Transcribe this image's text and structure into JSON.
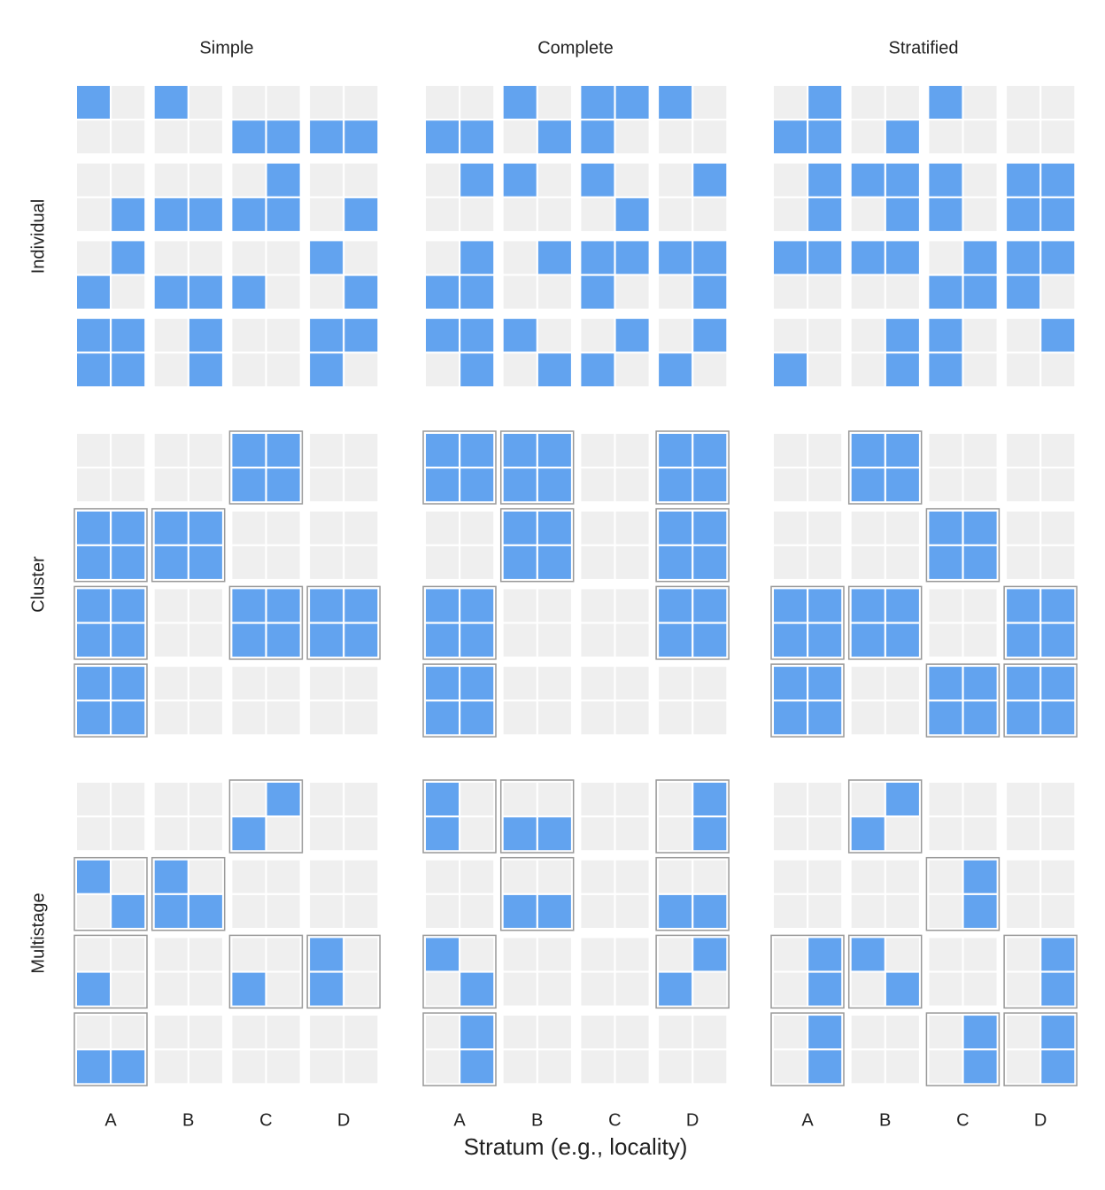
{
  "columns": [
    "Simple",
    "Complete",
    "Stratified"
  ],
  "strata": [
    "A",
    "B",
    "C",
    "D"
  ],
  "x_title": "Stratum (e.g., locality)",
  "colors": {
    "selected": "#62a3ef",
    "unselected": "#efefef",
    "box": "#999999"
  },
  "rows": [
    {
      "label": "Individual",
      "panels": [
        {
          "cells": [
            [
              1,
              0,
              1,
              0,
              0,
              0,
              0,
              0
            ],
            [
              0,
              0,
              0,
              0,
              1,
              1,
              1,
              1
            ],
            [
              0,
              0,
              0,
              0,
              0,
              1,
              0,
              0
            ],
            [
              0,
              1,
              1,
              1,
              1,
              1,
              0,
              1
            ],
            [
              0,
              1,
              0,
              0,
              0,
              0,
              1,
              0
            ],
            [
              1,
              0,
              1,
              1,
              1,
              0,
              0,
              1
            ],
            [
              1,
              1,
              0,
              1,
              0,
              0,
              1,
              1
            ],
            [
              1,
              1,
              0,
              1,
              0,
              0,
              1,
              0
            ]
          ],
          "boxes": [
            [
              0,
              0,
              0,
              0
            ],
            [
              0,
              0,
              0,
              0
            ],
            [
              0,
              0,
              0,
              0
            ],
            [
              0,
              0,
              0,
              0
            ]
          ]
        },
        {
          "cells": [
            [
              0,
              0,
              1,
              0,
              1,
              1,
              1,
              0
            ],
            [
              1,
              1,
              0,
              1,
              1,
              0,
              0,
              0
            ],
            [
              0,
              1,
              1,
              0,
              1,
              0,
              0,
              1
            ],
            [
              0,
              0,
              0,
              0,
              0,
              1,
              0,
              0
            ],
            [
              0,
              1,
              0,
              1,
              1,
              1,
              1,
              1
            ],
            [
              1,
              1,
              0,
              0,
              1,
              0,
              0,
              1
            ],
            [
              1,
              1,
              1,
              0,
              0,
              1,
              0,
              1
            ],
            [
              0,
              1,
              0,
              1,
              1,
              0,
              1,
              0
            ]
          ],
          "boxes": [
            [
              0,
              0,
              0,
              0
            ],
            [
              0,
              0,
              0,
              0
            ],
            [
              0,
              0,
              0,
              0
            ],
            [
              0,
              0,
              0,
              0
            ]
          ]
        },
        {
          "cells": [
            [
              0,
              1,
              0,
              0,
              1,
              0,
              0,
              0
            ],
            [
              1,
              1,
              0,
              1,
              0,
              0,
              0,
              0
            ],
            [
              0,
              1,
              1,
              1,
              1,
              0,
              1,
              1
            ],
            [
              0,
              1,
              0,
              1,
              1,
              0,
              1,
              1
            ],
            [
              1,
              1,
              1,
              1,
              0,
              1,
              1,
              1
            ],
            [
              0,
              0,
              0,
              0,
              1,
              1,
              1,
              0
            ],
            [
              0,
              0,
              0,
              1,
              1,
              0,
              0,
              1
            ],
            [
              1,
              0,
              0,
              1,
              1,
              0,
              0,
              0
            ]
          ],
          "boxes": [
            [
              0,
              0,
              0,
              0
            ],
            [
              0,
              0,
              0,
              0
            ],
            [
              0,
              0,
              0,
              0
            ],
            [
              0,
              0,
              0,
              0
            ]
          ]
        }
      ]
    },
    {
      "label": "Cluster",
      "panels": [
        {
          "cells": [
            [
              0,
              0,
              0,
              0,
              1,
              1,
              0,
              0
            ],
            [
              0,
              0,
              0,
              0,
              1,
              1,
              0,
              0
            ],
            [
              1,
              1,
              1,
              1,
              0,
              0,
              0,
              0
            ],
            [
              1,
              1,
              1,
              1,
              0,
              0,
              0,
              0
            ],
            [
              1,
              1,
              0,
              0,
              1,
              1,
              1,
              1
            ],
            [
              1,
              1,
              0,
              0,
              1,
              1,
              1,
              1
            ],
            [
              1,
              1,
              0,
              0,
              0,
              0,
              0,
              0
            ],
            [
              1,
              1,
              0,
              0,
              0,
              0,
              0,
              0
            ]
          ],
          "boxes": [
            [
              0,
              0,
              1,
              0
            ],
            [
              1,
              1,
              0,
              0
            ],
            [
              1,
              0,
              1,
              1
            ],
            [
              1,
              0,
              0,
              0
            ]
          ]
        },
        {
          "cells": [
            [
              1,
              1,
              1,
              1,
              0,
              0,
              1,
              1
            ],
            [
              1,
              1,
              1,
              1,
              0,
              0,
              1,
              1
            ],
            [
              0,
              0,
              1,
              1,
              0,
              0,
              1,
              1
            ],
            [
              0,
              0,
              1,
              1,
              0,
              0,
              1,
              1
            ],
            [
              1,
              1,
              0,
              0,
              0,
              0,
              1,
              1
            ],
            [
              1,
              1,
              0,
              0,
              0,
              0,
              1,
              1
            ],
            [
              1,
              1,
              0,
              0,
              0,
              0,
              0,
              0
            ],
            [
              1,
              1,
              0,
              0,
              0,
              0,
              0,
              0
            ]
          ],
          "boxes": [
            [
              1,
              1,
              0,
              1
            ],
            [
              0,
              1,
              0,
              1
            ],
            [
              1,
              0,
              0,
              1
            ],
            [
              1,
              0,
              0,
              0
            ]
          ]
        },
        {
          "cells": [
            [
              0,
              0,
              1,
              1,
              0,
              0,
              0,
              0
            ],
            [
              0,
              0,
              1,
              1,
              0,
              0,
              0,
              0
            ],
            [
              0,
              0,
              0,
              0,
              1,
              1,
              0,
              0
            ],
            [
              0,
              0,
              0,
              0,
              1,
              1,
              0,
              0
            ],
            [
              1,
              1,
              1,
              1,
              0,
              0,
              1,
              1
            ],
            [
              1,
              1,
              1,
              1,
              0,
              0,
              1,
              1
            ],
            [
              1,
              1,
              0,
              0,
              1,
              1,
              1,
              1
            ],
            [
              1,
              1,
              0,
              0,
              1,
              1,
              1,
              1
            ]
          ],
          "boxes": [
            [
              0,
              1,
              0,
              0
            ],
            [
              0,
              0,
              1,
              0
            ],
            [
              1,
              1,
              0,
              1
            ],
            [
              1,
              0,
              1,
              1
            ]
          ]
        }
      ]
    },
    {
      "label": "Multistage",
      "panels": [
        {
          "cells": [
            [
              0,
              0,
              0,
              0,
              0,
              1,
              0,
              0
            ],
            [
              0,
              0,
              0,
              0,
              1,
              0,
              0,
              0
            ],
            [
              1,
              0,
              1,
              0,
              0,
              0,
              0,
              0
            ],
            [
              0,
              1,
              1,
              1,
              0,
              0,
              0,
              0
            ],
            [
              0,
              0,
              0,
              0,
              0,
              0,
              1,
              0
            ],
            [
              1,
              0,
              0,
              0,
              1,
              0,
              1,
              0
            ],
            [
              0,
              0,
              0,
              0,
              0,
              0,
              0,
              0
            ],
            [
              1,
              1,
              0,
              0,
              0,
              0,
              0,
              0
            ]
          ],
          "boxes": [
            [
              0,
              0,
              1,
              0
            ],
            [
              1,
              1,
              0,
              0
            ],
            [
              1,
              0,
              1,
              1
            ],
            [
              1,
              0,
              0,
              0
            ]
          ]
        },
        {
          "cells": [
            [
              1,
              0,
              0,
              0,
              0,
              0,
              0,
              1
            ],
            [
              1,
              0,
              1,
              1,
              0,
              0,
              0,
              1
            ],
            [
              0,
              0,
              0,
              0,
              0,
              0,
              0,
              0
            ],
            [
              0,
              0,
              1,
              1,
              0,
              0,
              1,
              1
            ],
            [
              1,
              0,
              0,
              0,
              0,
              0,
              0,
              1
            ],
            [
              0,
              1,
              0,
              0,
              0,
              0,
              1,
              0
            ],
            [
              0,
              1,
              0,
              0,
              0,
              0,
              0,
              0
            ],
            [
              0,
              1,
              0,
              0,
              0,
              0,
              0,
              0
            ]
          ],
          "boxes": [
            [
              1,
              1,
              0,
              1
            ],
            [
              0,
              1,
              0,
              1
            ],
            [
              1,
              0,
              0,
              1
            ],
            [
              1,
              0,
              0,
              0
            ]
          ]
        },
        {
          "cells": [
            [
              0,
              0,
              0,
              1,
              0,
              0,
              0,
              0
            ],
            [
              0,
              0,
              1,
              0,
              0,
              0,
              0,
              0
            ],
            [
              0,
              0,
              0,
              0,
              0,
              1,
              0,
              0
            ],
            [
              0,
              0,
              0,
              0,
              0,
              1,
              0,
              0
            ],
            [
              0,
              1,
              1,
              0,
              0,
              0,
              0,
              1
            ],
            [
              0,
              1,
              0,
              1,
              0,
              0,
              0,
              1
            ],
            [
              0,
              1,
              0,
              0,
              0,
              1,
              0,
              1
            ],
            [
              0,
              1,
              0,
              0,
              0,
              1,
              0,
              1
            ]
          ],
          "boxes": [
            [
              0,
              1,
              0,
              0
            ],
            [
              0,
              0,
              1,
              0
            ],
            [
              1,
              1,
              0,
              1
            ],
            [
              1,
              0,
              1,
              1
            ]
          ]
        }
      ]
    }
  ]
}
